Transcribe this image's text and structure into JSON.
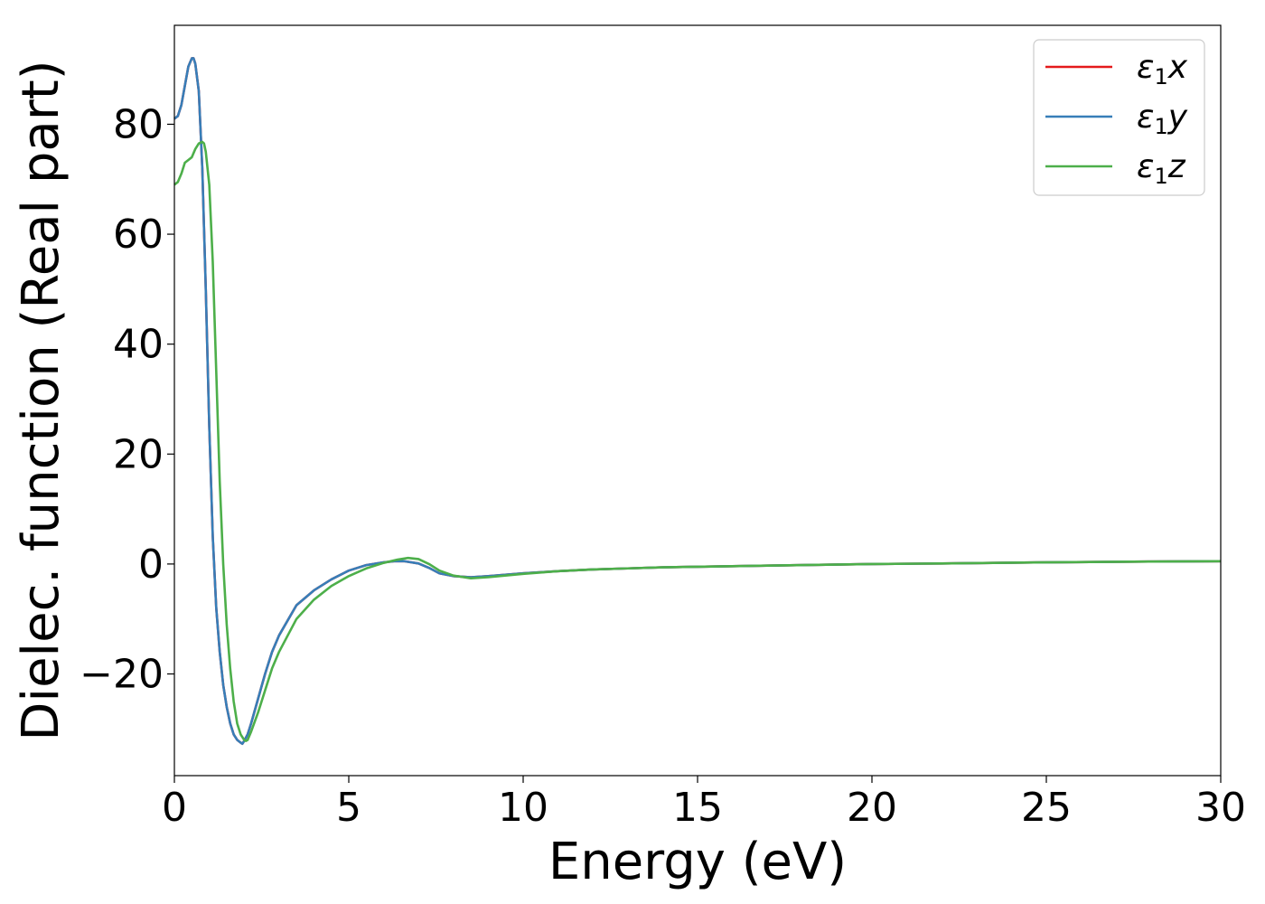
{
  "chart_data": {
    "type": "line",
    "title": "",
    "xlabel": "Energy (eV)",
    "ylabel": "Dielec. function (Real part)",
    "xlim": [
      0,
      30
    ],
    "ylim": [
      -38.5,
      98
    ],
    "xticks": [
      0,
      5,
      10,
      15,
      20,
      25,
      30
    ],
    "yticks": [
      -20,
      0,
      20,
      40,
      60,
      80
    ],
    "xtick_labels": [
      "0",
      "5",
      "10",
      "15",
      "20",
      "25",
      "30"
    ],
    "ytick_labels": [
      "−20",
      "0",
      "20",
      "40",
      "60",
      "80"
    ],
    "grid": false,
    "legend_position": "top-right",
    "series": [
      {
        "name": "ε₁x",
        "legend_main": "ε",
        "legend_sub": "1",
        "legend_var": "x",
        "color": "#e41a1c",
        "x": [
          0,
          0.1,
          0.2,
          0.3,
          0.4,
          0.5,
          0.55,
          0.6,
          0.7,
          0.8,
          0.9,
          1.0,
          1.1,
          1.2,
          1.3,
          1.4,
          1.5,
          1.6,
          1.7,
          1.8,
          1.9,
          1.95,
          2.0,
          2.1,
          2.2,
          2.4,
          2.6,
          2.8,
          3.0,
          3.5,
          4.0,
          4.5,
          5.0,
          5.5,
          6.0,
          6.3,
          6.6,
          7.0,
          7.3,
          7.6,
          8.0,
          8.5,
          9.0,
          10,
          11,
          12,
          13,
          14,
          15,
          17,
          20,
          22,
          25,
          28,
          30
        ],
        "values": [
          81,
          81.5,
          83.5,
          87,
          90.5,
          92,
          92,
          91,
          86,
          72,
          50,
          25,
          5,
          -8,
          -16,
          -22,
          -26,
          -29,
          -31,
          -32,
          -32.5,
          -32.7,
          -32.2,
          -31,
          -29,
          -24.5,
          -20,
          -16,
          -13,
          -7.5,
          -4.8,
          -2.8,
          -1.2,
          -0.2,
          0.3,
          0.5,
          0.5,
          0.1,
          -0.7,
          -1.7,
          -2.2,
          -2.4,
          -2.2,
          -1.7,
          -1.3,
          -1.0,
          -0.8,
          -0.6,
          -0.5,
          -0.3,
          0,
          0.1,
          0.3,
          0.45,
          0.5
        ]
      },
      {
        "name": "ε₁y",
        "legend_main": "ε",
        "legend_sub": "1",
        "legend_var": "y",
        "color": "#377eb8",
        "x": [
          0,
          0.1,
          0.2,
          0.3,
          0.4,
          0.5,
          0.55,
          0.6,
          0.7,
          0.8,
          0.9,
          1.0,
          1.1,
          1.2,
          1.3,
          1.4,
          1.5,
          1.6,
          1.7,
          1.8,
          1.9,
          1.95,
          2.0,
          2.1,
          2.2,
          2.4,
          2.6,
          2.8,
          3.0,
          3.5,
          4.0,
          4.5,
          5.0,
          5.5,
          6.0,
          6.3,
          6.6,
          7.0,
          7.3,
          7.6,
          8.0,
          8.5,
          9.0,
          10,
          11,
          12,
          13,
          14,
          15,
          17,
          20,
          22,
          25,
          28,
          30
        ],
        "values": [
          81,
          81.5,
          83.5,
          87,
          90.5,
          92,
          92,
          91,
          86,
          72,
          50,
          25,
          5,
          -8,
          -16,
          -22,
          -26,
          -29,
          -31,
          -32,
          -32.5,
          -32.7,
          -32.2,
          -31,
          -29,
          -24.5,
          -20,
          -16,
          -13,
          -7.5,
          -4.8,
          -2.8,
          -1.2,
          -0.2,
          0.3,
          0.5,
          0.5,
          0.1,
          -0.7,
          -1.7,
          -2.2,
          -2.4,
          -2.2,
          -1.7,
          -1.3,
          -1.0,
          -0.8,
          -0.6,
          -0.5,
          -0.3,
          0,
          0.1,
          0.3,
          0.45,
          0.5
        ]
      },
      {
        "name": "ε₁z",
        "legend_main": "ε",
        "legend_sub": "1",
        "legend_var": "z",
        "color": "#4daf4a",
        "x": [
          0,
          0.1,
          0.2,
          0.3,
          0.4,
          0.5,
          0.6,
          0.7,
          0.8,
          0.85,
          0.9,
          1.0,
          1.1,
          1.2,
          1.3,
          1.4,
          1.5,
          1.6,
          1.7,
          1.8,
          1.9,
          2.0,
          2.05,
          2.1,
          2.2,
          2.4,
          2.6,
          2.8,
          3.0,
          3.5,
          4.0,
          4.5,
          5.0,
          5.5,
          6.0,
          6.4,
          6.7,
          7.0,
          7.3,
          7.6,
          8.0,
          8.5,
          9.0,
          10,
          11,
          12,
          13,
          14,
          15,
          17,
          20,
          22,
          25,
          28,
          30
        ],
        "values": [
          69,
          69.5,
          71,
          73,
          73.5,
          74,
          75.5,
          76.5,
          76.8,
          76.5,
          75,
          69,
          55,
          35,
          15,
          0,
          -11,
          -19,
          -25,
          -29,
          -31,
          -32,
          -32.2,
          -32,
          -30.5,
          -27,
          -23,
          -19,
          -16,
          -10,
          -6.5,
          -4,
          -2.2,
          -0.8,
          0.2,
          0.8,
          1.1,
          0.9,
          0,
          -1.2,
          -2.1,
          -2.6,
          -2.4,
          -1.8,
          -1.3,
          -1.0,
          -0.8,
          -0.6,
          -0.5,
          -0.3,
          0,
          0.1,
          0.3,
          0.45,
          0.5
        ]
      }
    ]
  }
}
